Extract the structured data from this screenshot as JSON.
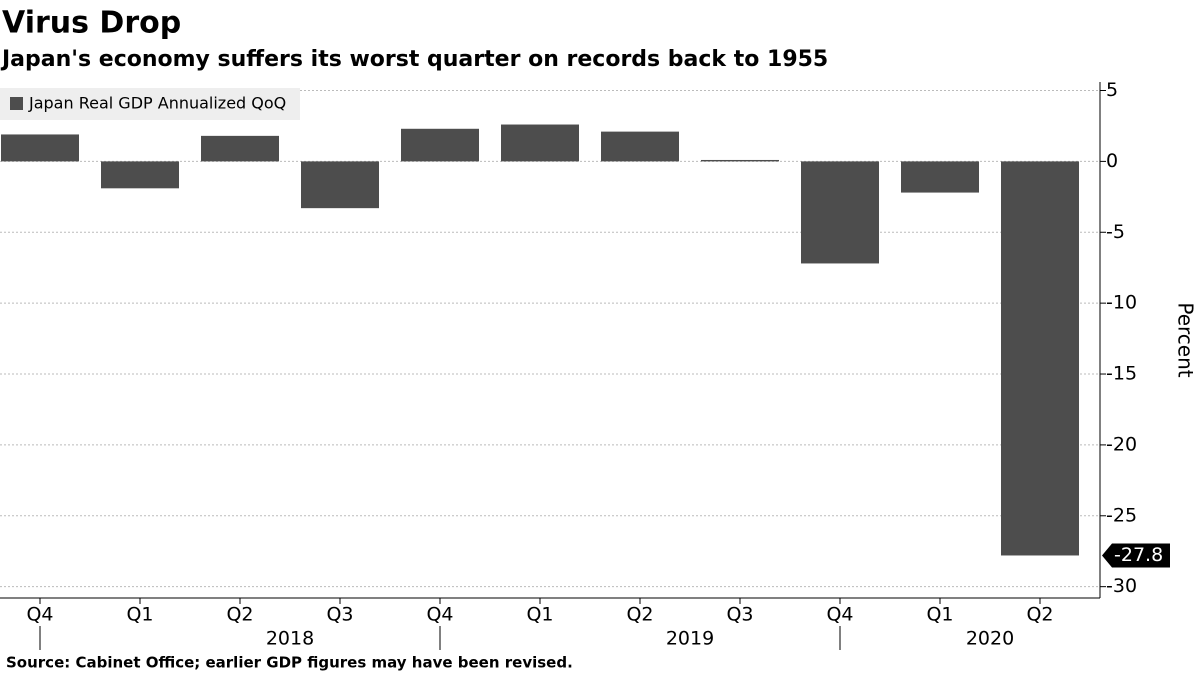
{
  "chart_data": {
    "type": "bar",
    "title": "Virus Drop",
    "subtitle": "Japan's economy suffers its worst quarter on records back to 1955",
    "y_label": "Percent",
    "source": "Source: Cabinet Office; earlier GDP figures may have been revised.",
    "categories": [
      "Q4",
      "Q1",
      "Q2",
      "Q3",
      "Q4",
      "Q1",
      "Q2",
      "Q3",
      "Q4",
      "Q1",
      "Q2"
    ],
    "years": [
      "2018",
      "2019",
      "2020"
    ],
    "series": [
      {
        "name": "Japan Real GDP Annualized QoQ",
        "color": "#4d4d4d",
        "values": [
          1.9,
          -1.9,
          1.8,
          -3.3,
          2.3,
          2.6,
          2.1,
          0.1,
          -7.2,
          -2.2,
          -27.8
        ]
      }
    ],
    "ylim": [
      -30.8,
      5.6
    ],
    "yticks": [
      5,
      0,
      -5,
      -10,
      -15,
      -20,
      -25,
      -30
    ],
    "grid": true
  }
}
